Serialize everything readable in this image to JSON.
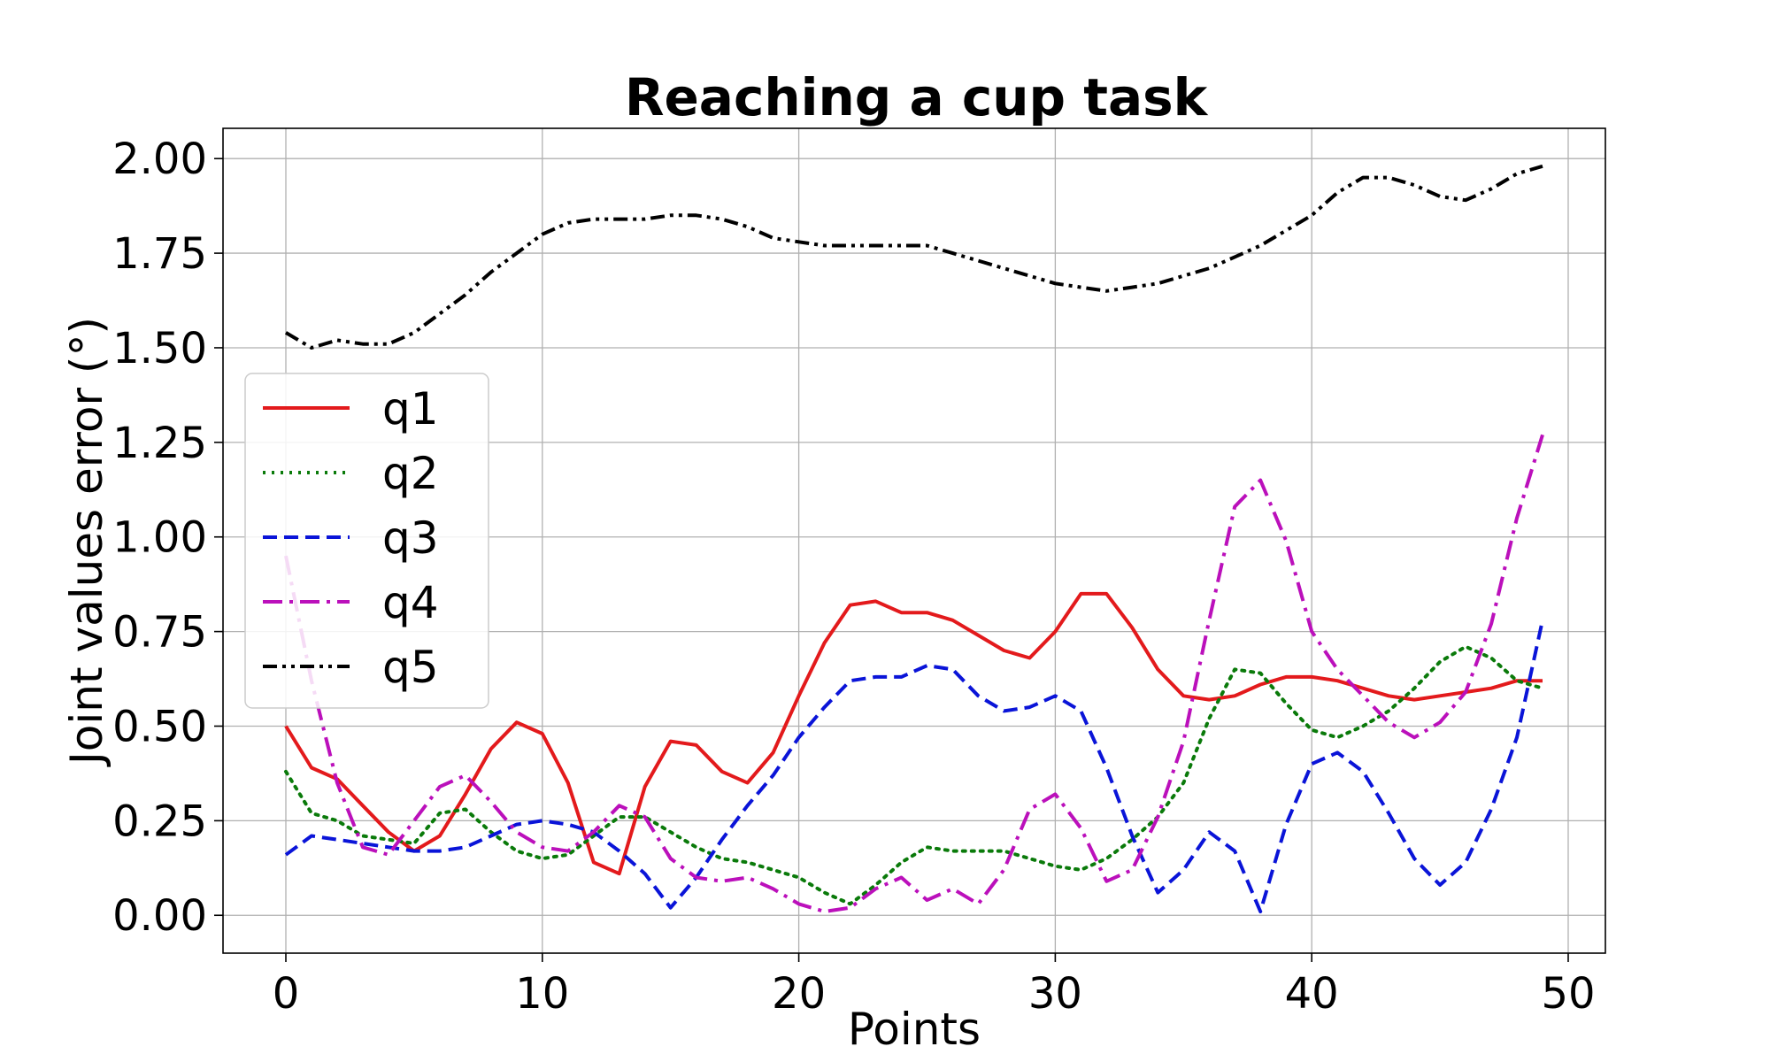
{
  "chart_data": {
    "type": "line",
    "title": "Reaching a cup task",
    "xlabel": "Points",
    "ylabel": "Joint values error (°)",
    "xlim": [
      -2.45,
      51.45
    ],
    "ylim": [
      -0.1,
      2.08
    ],
    "xticks": [
      0,
      10,
      20,
      30,
      40,
      50
    ],
    "yticks": [
      0.0,
      0.25,
      0.5,
      0.75,
      1.0,
      1.25,
      1.5,
      1.75,
      2.0
    ],
    "xtick_labels": [
      "0",
      "10",
      "20",
      "30",
      "40",
      "50"
    ],
    "ytick_labels": [
      "0.00",
      "0.25",
      "0.50",
      "0.75",
      "1.00",
      "1.25",
      "1.50",
      "1.75",
      "2.00"
    ],
    "grid": true,
    "legend_position": "center-left",
    "x": [
      0,
      1,
      2,
      3,
      4,
      5,
      6,
      7,
      8,
      9,
      10,
      11,
      12,
      13,
      14,
      15,
      16,
      17,
      18,
      19,
      20,
      21,
      22,
      23,
      24,
      25,
      26,
      27,
      28,
      29,
      30,
      31,
      32,
      33,
      34,
      35,
      36,
      37,
      38,
      39,
      40,
      41,
      42,
      43,
      44,
      45,
      46,
      47,
      48,
      49
    ],
    "series": [
      {
        "name": "q1",
        "color": "#e31a1c",
        "dash": "solid",
        "values": [
          0.5,
          0.39,
          0.36,
          0.29,
          0.22,
          0.17,
          0.21,
          0.32,
          0.44,
          0.51,
          0.48,
          0.35,
          0.14,
          0.11,
          0.34,
          0.46,
          0.45,
          0.38,
          0.35,
          0.43,
          0.58,
          0.72,
          0.82,
          0.83,
          0.8,
          0.8,
          0.78,
          0.74,
          0.7,
          0.68,
          0.75,
          0.85,
          0.85,
          0.76,
          0.65,
          0.58,
          0.57,
          0.58,
          0.61,
          0.63,
          0.63,
          0.62,
          0.6,
          0.58,
          0.57,
          0.58,
          0.59,
          0.6,
          0.62,
          0.62
        ]
      },
      {
        "name": "q2",
        "color": "#0a7a0a",
        "dash": "dotted",
        "values": [
          0.38,
          0.27,
          0.25,
          0.21,
          0.2,
          0.19,
          0.27,
          0.28,
          0.22,
          0.17,
          0.15,
          0.16,
          0.21,
          0.26,
          0.26,
          0.22,
          0.18,
          0.15,
          0.14,
          0.12,
          0.1,
          0.06,
          0.03,
          0.08,
          0.14,
          0.18,
          0.17,
          0.17,
          0.17,
          0.15,
          0.13,
          0.12,
          0.15,
          0.2,
          0.26,
          0.35,
          0.52,
          0.65,
          0.64,
          0.56,
          0.49,
          0.47,
          0.5,
          0.54,
          0.6,
          0.67,
          0.71,
          0.68,
          0.62,
          0.6
        ]
      },
      {
        "name": "q3",
        "color": "#0a14d8",
        "dash": "dashed",
        "values": [
          0.16,
          0.21,
          0.2,
          0.19,
          0.18,
          0.17,
          0.17,
          0.18,
          0.21,
          0.24,
          0.25,
          0.24,
          0.22,
          0.17,
          0.11,
          0.02,
          0.1,
          0.2,
          0.29,
          0.37,
          0.47,
          0.55,
          0.62,
          0.63,
          0.63,
          0.66,
          0.65,
          0.58,
          0.54,
          0.55,
          0.58,
          0.54,
          0.39,
          0.21,
          0.06,
          0.12,
          0.22,
          0.17,
          0.01,
          0.24,
          0.4,
          0.43,
          0.38,
          0.27,
          0.15,
          0.08,
          0.14,
          0.28,
          0.47,
          0.78
        ]
      },
      {
        "name": "q4",
        "color": "#bb10bb",
        "dash": "dashdot",
        "values": [
          0.95,
          0.62,
          0.35,
          0.18,
          0.16,
          0.25,
          0.34,
          0.37,
          0.3,
          0.22,
          0.18,
          0.17,
          0.22,
          0.29,
          0.26,
          0.15,
          0.1,
          0.09,
          0.1,
          0.07,
          0.03,
          0.01,
          0.02,
          0.07,
          0.1,
          0.04,
          0.07,
          0.03,
          0.12,
          0.28,
          0.32,
          0.23,
          0.09,
          0.12,
          0.26,
          0.46,
          0.78,
          1.08,
          1.15,
          0.99,
          0.75,
          0.65,
          0.58,
          0.51,
          0.47,
          0.51,
          0.59,
          0.77,
          1.05,
          1.27
        ]
      },
      {
        "name": "q5",
        "color": "#000000",
        "dash": "dashdotdot",
        "values": [
          1.54,
          1.5,
          1.52,
          1.51,
          1.51,
          1.54,
          1.59,
          1.64,
          1.7,
          1.75,
          1.8,
          1.83,
          1.84,
          1.84,
          1.84,
          1.85,
          1.85,
          1.84,
          1.82,
          1.79,
          1.78,
          1.77,
          1.77,
          1.77,
          1.77,
          1.77,
          1.75,
          1.73,
          1.71,
          1.69,
          1.67,
          1.66,
          1.65,
          1.66,
          1.67,
          1.69,
          1.71,
          1.74,
          1.77,
          1.81,
          1.85,
          1.91,
          1.95,
          1.95,
          1.93,
          1.9,
          1.89,
          1.92,
          1.96,
          1.98
        ]
      }
    ]
  }
}
